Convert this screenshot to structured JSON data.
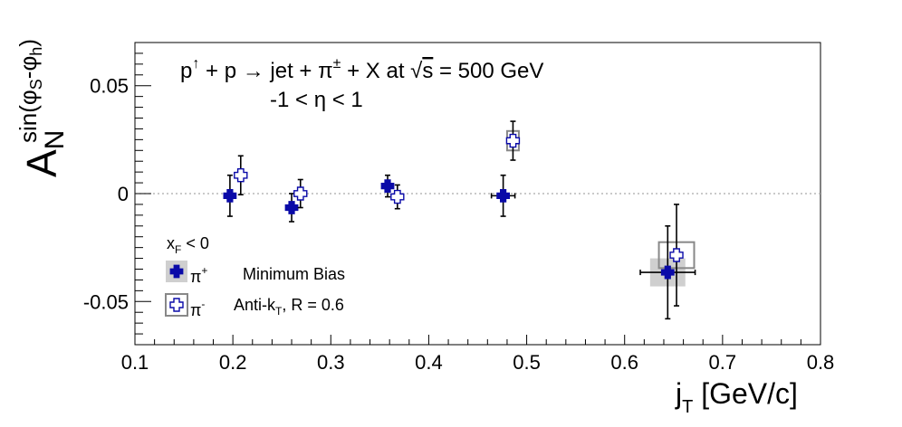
{
  "chart_data": {
    "type": "scatter",
    "annotations": {
      "line1": {
        "reaction": "p",
        "rest": " + p → jet + π",
        "tail": " + X at ",
        "energy": " = 500 GeV"
      },
      "line2": "-1 < η < 1"
    },
    "ylabel": {
      "main": "A",
      "sub": "N",
      "sup_open": "sin(φ",
      "sup_s": "S",
      "sup_mid": "-φ",
      "sup_h": "h",
      "sup_close": ")"
    },
    "xlabel": {
      "main": "j",
      "sub": "T",
      "unit": " [GeV/c]"
    },
    "xlim": [
      0.1,
      0.8
    ],
    "ylim": [
      -0.07,
      0.07
    ],
    "x_ticks": [
      "0.1",
      "0.2",
      "0.3",
      "0.4",
      "0.5",
      "0.6",
      "0.7",
      "0.8"
    ],
    "x_tick_values": [
      0.1,
      0.2,
      0.3,
      0.4,
      0.5,
      0.6,
      0.7,
      0.8
    ],
    "y_ticks": [
      "0.05",
      "0",
      "-0.05"
    ],
    "y_tick_values": [
      0.05,
      0.0,
      -0.05
    ],
    "grid": false,
    "reference_line_y": 0,
    "legend": {
      "placement": "bottom-left",
      "header_main": "x",
      "header_sub": "F",
      "header_rest": " < 0",
      "pi_plus": "π",
      "pi_plus_sup": "+",
      "pi_minus": "π",
      "pi_minus_sup": "-",
      "note1": "Minimum Bias",
      "note2_main": "Anti-k",
      "note2_sub": "T",
      "note2_rest": ", R = 0.6"
    },
    "series": [
      {
        "name": "π+",
        "marker": "filled-cross",
        "color": "#0a0aa8",
        "points": [
          {
            "x": 0.197,
            "y": -0.001,
            "yerr": 0.0095,
            "xerr": 0.0,
            "sys_dx": 0.0,
            "sys_dy": 0.0
          },
          {
            "x": 0.26,
            "y": -0.0065,
            "yerr": 0.0065,
            "xerr": 0.0,
            "sys_dx": 0.0,
            "sys_dy": 0.0
          },
          {
            "x": 0.358,
            "y": 0.0035,
            "yerr": 0.005,
            "xerr": 0.0,
            "sys_dx": 0.0,
            "sys_dy": 0.0
          },
          {
            "x": 0.476,
            "y": -0.001,
            "yerr": 0.0095,
            "xerr": 0.012,
            "sys_dx": 0.0,
            "sys_dy": 0.0
          },
          {
            "x": 0.644,
            "y": -0.0365,
            "yerr": 0.0215,
            "xerr": 0.028,
            "sys_dx": 0.018,
            "sys_dy": 0.0065
          }
        ]
      },
      {
        "name": "π-",
        "marker": "open-cross",
        "color": "#0a0aa8",
        "points": [
          {
            "x": 0.208,
            "y": 0.0085,
            "yerr": 0.009,
            "xerr": 0.0,
            "sys_dx": 0.0,
            "sys_dy": 0.0
          },
          {
            "x": 0.269,
            "y": 0.0,
            "yerr": 0.0065,
            "xerr": 0.0,
            "sys_dx": 0.0,
            "sys_dy": 0.0
          },
          {
            "x": 0.368,
            "y": -0.0015,
            "yerr": 0.0055,
            "xerr": 0.0,
            "sys_dx": 0.0,
            "sys_dy": 0.0
          },
          {
            "x": 0.486,
            "y": 0.0245,
            "yerr": 0.009,
            "xerr": 0.0,
            "sys_dx": 0.006,
            "sys_dy": 0.0045
          },
          {
            "x": 0.653,
            "y": -0.0285,
            "yerr": 0.0235,
            "xerr": 0.0,
            "sys_dx": 0.018,
            "sys_dy": 0.006
          }
        ]
      }
    ]
  }
}
